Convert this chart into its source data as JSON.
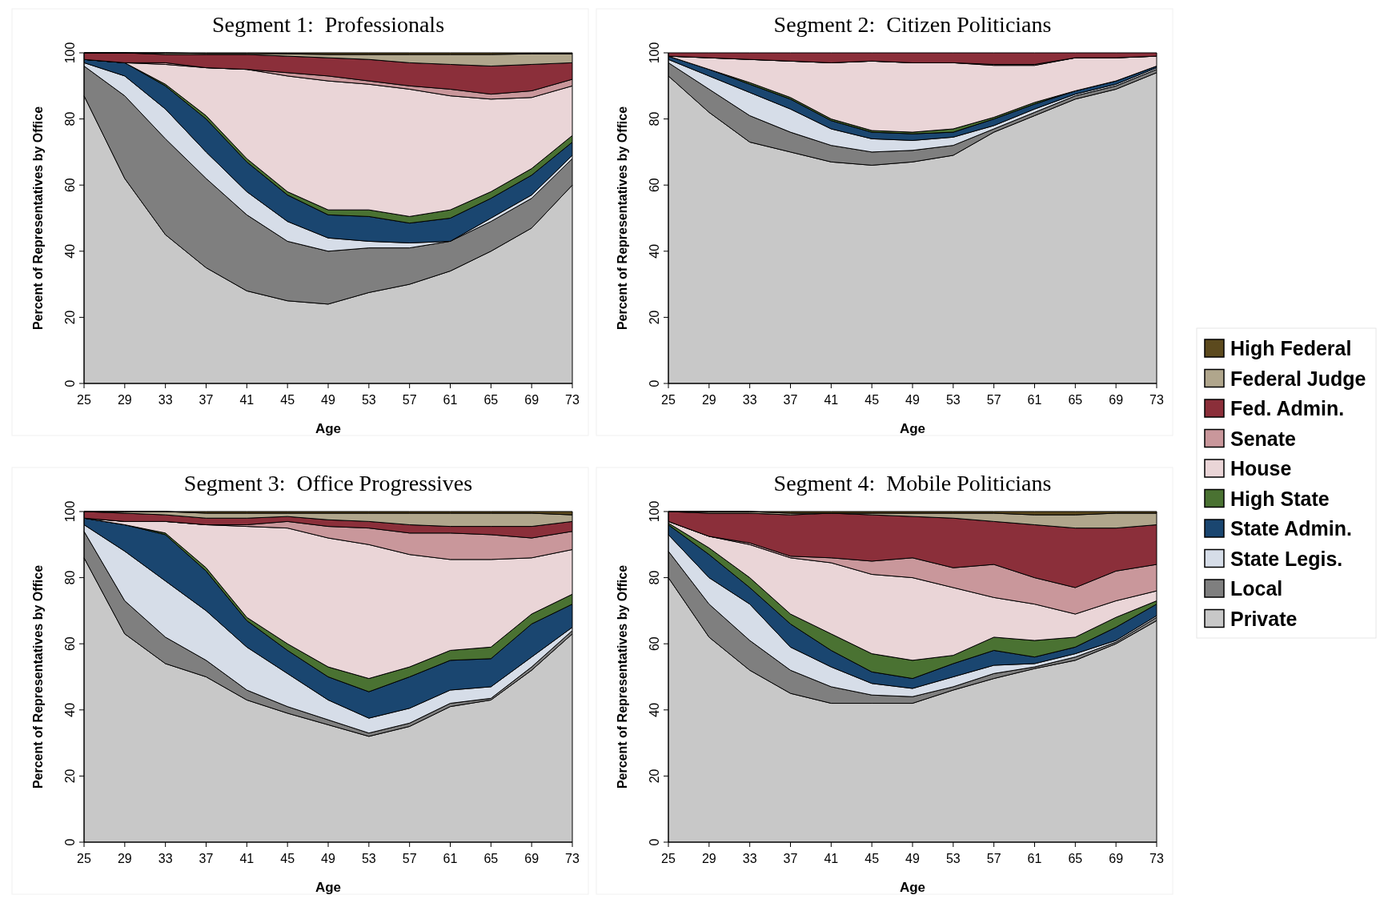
{
  "chart_data": [
    {
      "type": "area",
      "stacked": true,
      "title": "Segment 1:  Professionals",
      "xlabel": "Age",
      "ylabel": "Percent of Representatives by Office",
      "x": [
        25,
        29,
        33,
        37,
        41,
        45,
        49,
        53,
        57,
        61,
        65,
        69,
        73
      ],
      "xlim": [
        25,
        73
      ],
      "xticks": [
        25,
        29,
        33,
        37,
        41,
        45,
        49,
        53,
        57,
        61,
        65,
        69,
        73
      ],
      "ylim": [
        0,
        100
      ],
      "yticks": [
        0,
        20,
        40,
        60,
        80,
        100
      ],
      "legend": "right",
      "series": [
        {
          "name": "Private",
          "color": "#c8c8c8",
          "values": [
            87,
            62,
            45,
            35,
            28,
            25,
            24,
            27.5,
            30,
            34,
            40,
            47,
            60
          ]
        },
        {
          "name": "Local",
          "color": "#7f7f7f",
          "values": [
            9,
            25,
            29,
            27,
            23,
            18,
            16,
            13.5,
            11,
            9,
            9,
            9,
            8
          ]
        },
        {
          "name": "State Legis.",
          "color": "#d6dde8",
          "values": [
            1,
            6,
            9,
            8,
            7,
            6,
            4,
            2,
            1.5,
            0,
            1,
            1,
            1
          ]
        },
        {
          "name": "State Admin.",
          "color": "#1a4670",
          "values": [
            1,
            4,
            7,
            10,
            9,
            8,
            7,
            7.5,
            6,
            7,
            6,
            6,
            4
          ]
        },
        {
          "name": "High State",
          "color": "#4a7232",
          "values": [
            0,
            0,
            0.5,
            1,
            1,
            1,
            1.5,
            2,
            2,
            2.5,
            2,
            2,
            2
          ]
        },
        {
          "name": "House",
          "color": "#ead5d7",
          "values": [
            0,
            0,
            6,
            14.5,
            27,
            35,
            39,
            38,
            38.5,
            34.5,
            28,
            21.5,
            15
          ]
        },
        {
          "name": "Senate",
          "color": "#c9979b",
          "values": [
            0,
            0,
            0.5,
            0,
            0,
            1,
            1.5,
            1,
            1,
            2,
            1.5,
            2,
            2
          ]
        },
        {
          "name": "Fed. Admin.",
          "color": "#8b2f3a",
          "values": [
            2,
            3,
            2.5,
            4,
            4.5,
            5,
            5.5,
            6.5,
            7,
            7.5,
            8.5,
            8,
            5
          ]
        },
        {
          "name": "Federal Judge",
          "color": "#b0a68c",
          "values": [
            0,
            0,
            0.5,
            0.3,
            0.3,
            0.7,
            1,
            1.5,
            2.5,
            3,
            3.5,
            3.2,
            2.7
          ]
        },
        {
          "name": "High Federal",
          "color": "#5c4a1e",
          "values": [
            0,
            0,
            0,
            0.2,
            0.2,
            0.3,
            0.5,
            0.5,
            0.5,
            0.5,
            0.5,
            0.3,
            0.3
          ]
        }
      ]
    },
    {
      "type": "area",
      "stacked": true,
      "title": "Segment 2:  Citizen Politicians",
      "xlabel": "Age",
      "ylabel": "Percent of Representatives by Office",
      "x": [
        25,
        29,
        33,
        37,
        41,
        45,
        49,
        53,
        57,
        61,
        65,
        69,
        73
      ],
      "xlim": [
        25,
        73
      ],
      "xticks": [
        25,
        29,
        33,
        37,
        41,
        45,
        49,
        53,
        57,
        61,
        65,
        69,
        73
      ],
      "ylim": [
        0,
        100
      ],
      "yticks": [
        0,
        20,
        40,
        60,
        80,
        100
      ],
      "series": [
        {
          "color": "#c8c8c8",
          "values": [
            93,
            82,
            73,
            70,
            67,
            66,
            67,
            69,
            76,
            81,
            86,
            89,
            94
          ]
        },
        {
          "color": "#7f7f7f",
          "values": [
            4,
            7,
            8,
            6,
            5,
            4,
            3.5,
            3,
            1,
            1,
            1,
            1,
            1
          ]
        },
        {
          "color": "#d6dde8",
          "values": [
            1,
            4,
            7,
            7,
            5,
            4,
            3,
            2.5,
            1,
            1,
            0.5,
            0.5,
            0.5
          ]
        },
        {
          "color": "#1a4670",
          "values": [
            1,
            2,
            2.5,
            3,
            2.5,
            2,
            2,
            1.5,
            2,
            1.5,
            1,
            1,
            0.5
          ]
        },
        {
          "color": "#4a7232",
          "values": [
            0,
            0,
            0.5,
            0.5,
            0.5,
            0.5,
            0.5,
            1,
            0.5,
            0.5,
            0,
            0,
            0
          ]
        },
        {
          "color": "#ead5d7",
          "values": [
            0,
            3.5,
            7,
            11,
            17,
            21,
            21,
            20,
            15.7,
            11.2,
            10,
            7,
            3
          ]
        },
        {
          "color": "#c9979b",
          "values": [
            0,
            0,
            0,
            0,
            0,
            0,
            0,
            0,
            0.3,
            0.3,
            0,
            0,
            0
          ]
        },
        {
          "color": "#8b2f3a",
          "values": [
            1,
            1.5,
            2,
            2.5,
            3,
            2.5,
            3,
            3,
            3.5,
            3.5,
            1.5,
            1.5,
            1
          ]
        }
      ]
    },
    {
      "type": "area",
      "stacked": true,
      "title": "Segment 3:  Office Progressives",
      "xlabel": "Age",
      "ylabel": "Percent of Representatives by Office",
      "x": [
        25,
        29,
        33,
        37,
        41,
        45,
        49,
        53,
        57,
        61,
        65,
        69,
        73
      ],
      "xlim": [
        25,
        73
      ],
      "xticks": [
        25,
        29,
        33,
        37,
        41,
        45,
        49,
        53,
        57,
        61,
        65,
        69,
        73
      ],
      "ylim": [
        0,
        100
      ],
      "yticks": [
        0,
        20,
        40,
        60,
        80,
        100
      ],
      "series": [
        {
          "color": "#c8c8c8",
          "values": [
            86,
            63,
            54,
            50,
            43,
            39,
            35.5,
            32,
            35,
            41,
            43,
            52,
            63
          ]
        },
        {
          "color": "#7f7f7f",
          "values": [
            8,
            10,
            8,
            5,
            3,
            2,
            1.5,
            1,
            1,
            1,
            0.5,
            1,
            1
          ]
        },
        {
          "color": "#d6dde8",
          "values": [
            2,
            15,
            17,
            15,
            13,
            10,
            6,
            4.5,
            4.5,
            4,
            3.5,
            3,
            1
          ]
        },
        {
          "color": "#1a4670",
          "values": [
            2,
            8,
            14,
            12,
            8,
            7,
            7,
            8,
            9.5,
            9,
            8.5,
            10,
            7
          ]
        },
        {
          "color": "#4a7232",
          "values": [
            0,
            0,
            0.5,
            1,
            1,
            2,
            3,
            4,
            3,
            3,
            3.5,
            3,
            3
          ]
        },
        {
          "color": "#ead5d7",
          "values": [
            0,
            1,
            3.5,
            13,
            27.5,
            35,
            39,
            40.5,
            34,
            27.5,
            26.5,
            17,
            13.5
          ]
        },
        {
          "color": "#c9979b",
          "values": [
            0,
            0,
            0,
            0,
            0.5,
            2,
            3.5,
            5,
            6.5,
            8,
            7.5,
            6,
            5.5
          ]
        },
        {
          "color": "#8b2f3a",
          "values": [
            2,
            2.5,
            2,
            2,
            2,
            1.5,
            2,
            2,
            2.5,
            2,
            2.5,
            3.5,
            3
          ]
        },
        {
          "color": "#b0a68c",
          "values": [
            0,
            0.5,
            1,
            1.5,
            1.5,
            1,
            2,
            2.5,
            3.5,
            4,
            4,
            4,
            2
          ]
        },
        {
          "color": "#5c4a1e",
          "values": [
            0,
            0,
            0,
            0.5,
            0.5,
            0.5,
            0.5,
            0.5,
            0.5,
            0.5,
            0.5,
            0.5,
            1
          ]
        }
      ]
    },
    {
      "type": "area",
      "stacked": true,
      "title": "Segment 4:  Mobile Politicians",
      "xlabel": "Age",
      "ylabel": "Percent of Representatives by Office",
      "x": [
        25,
        29,
        33,
        37,
        41,
        45,
        49,
        53,
        57,
        61,
        65,
        69,
        73
      ],
      "xlim": [
        25,
        73
      ],
      "xticks": [
        25,
        29,
        33,
        37,
        41,
        45,
        49,
        53,
        57,
        61,
        65,
        69,
        73
      ],
      "ylim": [
        0,
        100
      ],
      "yticks": [
        0,
        20,
        40,
        60,
        80,
        100
      ],
      "series": [
        {
          "color": "#c8c8c8",
          "values": [
            80,
            62,
            52,
            45,
            42,
            42,
            42,
            46,
            49.5,
            52.5,
            55,
            60,
            67
          ]
        },
        {
          "color": "#7f7f7f",
          "values": [
            8,
            10,
            9,
            7,
            5,
            2.5,
            2,
            1,
            1.5,
            0.5,
            1,
            0.5,
            1
          ]
        },
        {
          "color": "#d6dde8",
          "values": [
            5,
            8,
            11,
            7,
            6,
            3.5,
            2.5,
            3,
            2.5,
            1,
            1,
            0.5,
            0.5
          ]
        },
        {
          "color": "#1a4670",
          "values": [
            3,
            7,
            5,
            7,
            5,
            3.5,
            3,
            4,
            4.5,
            2,
            2,
            4,
            3.5
          ]
        },
        {
          "color": "#4a7232",
          "values": [
            0.5,
            2,
            3,
            3,
            5,
            5.5,
            5.5,
            2.5,
            4,
            5,
            3,
            3,
            1
          ]
        },
        {
          "color": "#ead5d7",
          "values": [
            0.5,
            3.5,
            10,
            17,
            21.5,
            24,
            25,
            20.5,
            12,
            11,
            7,
            5,
            3
          ]
        },
        {
          "color": "#c9979b",
          "values": [
            0,
            0,
            0.5,
            0.5,
            1.5,
            4,
            6,
            6,
            10,
            8,
            8,
            9,
            8
          ]
        },
        {
          "color": "#8b2f3a",
          "values": [
            3,
            7,
            9,
            12.5,
            13.5,
            14,
            12.5,
            15,
            13,
            16,
            18,
            13,
            12
          ]
        },
        {
          "color": "#b0a68c",
          "values": [
            0,
            0.5,
            0.5,
            0.5,
            0,
            0.5,
            1,
            1.5,
            2.5,
            3,
            4,
            4.5,
            3.5
          ]
        },
        {
          "color": "#5c4a1e",
          "values": [
            0,
            0,
            0,
            0.5,
            0.5,
            0.5,
            0.5,
            0.5,
            0.5,
            1,
            1,
            0.5,
            0.5
          ]
        }
      ]
    }
  ]
}
